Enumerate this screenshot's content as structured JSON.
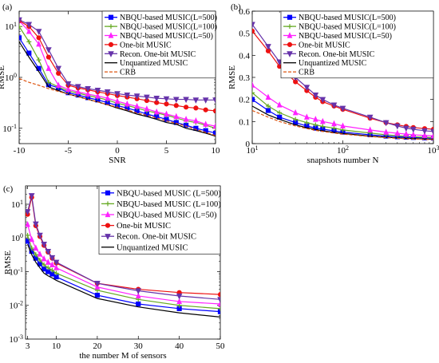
{
  "chart_data": [
    {
      "panel": "(a)",
      "type": "line",
      "xlabel": "SNR",
      "ylabel": "RMSE",
      "yscale": "log",
      "xlim": [
        -10,
        10
      ],
      "ylim": [
        0.05,
        20
      ],
      "xticks": [
        "-10",
        "-5",
        "0",
        "5",
        "10"
      ],
      "xtick_values": [
        -10,
        -5,
        0,
        5,
        10
      ],
      "yticks": [
        "10^{-1}",
        "10^0",
        "10^1"
      ],
      "ytick_values": [
        0.1,
        1,
        10
      ],
      "legend_position": "top-right",
      "series": [
        {
          "name": "NBQU-based MUSIC(L=500)",
          "color": "#0000ff",
          "marker": "square",
          "dash": "",
          "x": [
            -10,
            -9,
            -8,
            -7,
            -6,
            -5,
            -4,
            -3,
            -2,
            -1,
            0,
            1,
            2,
            3,
            4,
            5,
            6,
            7,
            8,
            9,
            10
          ],
          "y": [
            6,
            3,
            1.5,
            0.72,
            0.62,
            0.5,
            0.45,
            0.4,
            0.36,
            0.32,
            0.28,
            0.25,
            0.22,
            0.19,
            0.17,
            0.15,
            0.13,
            0.115,
            0.1,
            0.09,
            0.08
          ]
        },
        {
          "name": "NBQU-based MUSIC(L=100)",
          "color": "#66aa22",
          "marker": "plus",
          "dash": "",
          "x": [
            -10,
            -9,
            -8,
            -7,
            -6,
            -5,
            -4,
            -3,
            -2,
            -1,
            0,
            1,
            2,
            3,
            4,
            5,
            6,
            7,
            8,
            9,
            10
          ],
          "y": [
            10,
            5,
            2.2,
            0.8,
            0.65,
            0.54,
            0.49,
            0.44,
            0.4,
            0.36,
            0.31,
            0.28,
            0.25,
            0.22,
            0.2,
            0.18,
            0.16,
            0.14,
            0.13,
            0.115,
            0.1
          ]
        },
        {
          "name": "NBQU-based MUSIC(L=50)",
          "color": "#ff22ff",
          "marker": "triangle",
          "dash": "",
          "x": [
            -10,
            -9,
            -8,
            -7,
            -6,
            -5,
            -4,
            -3,
            -2,
            -1,
            0,
            1,
            2,
            3,
            4,
            5,
            6,
            7,
            8,
            9,
            10
          ],
          "y": [
            13,
            8,
            4.5,
            1.5,
            0.7,
            0.58,
            0.52,
            0.47,
            0.43,
            0.39,
            0.34,
            0.3,
            0.27,
            0.24,
            0.21,
            0.19,
            0.17,
            0.15,
            0.14,
            0.12,
            0.11
          ]
        },
        {
          "name": "One-bit MUSIC",
          "color": "#ee1111",
          "marker": "circle",
          "dash": "",
          "x": [
            -10,
            -9,
            -8,
            -7,
            -6,
            -5,
            -4,
            -3,
            -2,
            -1,
            0,
            1,
            2,
            3,
            4,
            5,
            6,
            7,
            8,
            9,
            10
          ],
          "y": [
            13,
            10,
            6,
            2.5,
            1.2,
            0.7,
            0.62,
            0.57,
            0.52,
            0.48,
            0.44,
            0.41,
            0.38,
            0.35,
            0.32,
            0.3,
            0.28,
            0.26,
            0.25,
            0.23,
            0.22
          ]
        },
        {
          "name": "Recon. One-bit MUSIC",
          "color": "#6633aa",
          "marker": "downtriangle",
          "dash": "",
          "x": [
            -10,
            -9,
            -8,
            -7,
            -6,
            -5,
            -4,
            -3,
            -2,
            -1,
            0,
            1,
            2,
            3,
            4,
            5,
            6,
            7,
            8,
            9,
            10
          ],
          "y": [
            13.5,
            11,
            8,
            3.5,
            1.5,
            0.75,
            0.66,
            0.6,
            0.56,
            0.52,
            0.48,
            0.45,
            0.43,
            0.41,
            0.39,
            0.38,
            0.37,
            0.37,
            0.36,
            0.36,
            0.36
          ]
        },
        {
          "name": "Unquantized MUSIC",
          "color": "#000000",
          "marker": "none",
          "dash": "",
          "x": [
            -10,
            -9,
            -8,
            -7,
            -6,
            -5,
            -4,
            -3,
            -2,
            -1,
            0,
            1,
            2,
            3,
            4,
            5,
            6,
            7,
            8,
            9,
            10
          ],
          "y": [
            5,
            2.5,
            1.3,
            0.65,
            0.55,
            0.47,
            0.42,
            0.37,
            0.33,
            0.29,
            0.25,
            0.22,
            0.19,
            0.17,
            0.15,
            0.13,
            0.12,
            0.1,
            0.09,
            0.08,
            0.07
          ]
        },
        {
          "name": "CRB",
          "color": "#dd5511",
          "marker": "none",
          "dash": "4,2",
          "x": [
            -10,
            -9,
            -8,
            -7,
            -6,
            -5,
            -4,
            -3,
            -2,
            -1,
            0,
            1,
            2,
            3,
            4,
            5,
            6,
            7,
            8,
            9,
            10
          ],
          "y": [
            0.95,
            0.8,
            0.7,
            0.6,
            0.53,
            0.47,
            0.42,
            0.37,
            0.33,
            0.29,
            0.26,
            0.23,
            0.2,
            0.18,
            0.16,
            0.14,
            0.125,
            0.11,
            0.095,
            0.083,
            0.072
          ]
        }
      ]
    },
    {
      "panel": "(b)",
      "type": "line",
      "xlabel": "snapshots number N",
      "ylabel": "RMSE",
      "xscale": "log",
      "xlim": [
        10,
        1000
      ],
      "ylim": [
        0,
        0.6
      ],
      "xticks": [
        "10^1",
        "10^2",
        "10^3"
      ],
      "xtick_values": [
        10,
        100,
        1000
      ],
      "yticks": [
        "0",
        "0.1",
        "0.2",
        "0.3",
        "0.4",
        "0.5",
        "0.6"
      ],
      "ytick_values": [
        0,
        0.1,
        0.2,
        0.3,
        0.4,
        0.5,
        0.6
      ],
      "legend_position": "top-right",
      "series": [
        {
          "name": "NBQU-based MUSIC(L=500)",
          "color": "#0000ff",
          "marker": "square",
          "dash": "",
          "x": [
            10,
            15,
            20,
            30,
            40,
            50,
            60,
            80,
            100,
            200,
            300,
            400,
            500,
            600,
            800,
            1000
          ],
          "y": [
            0.2,
            0.15,
            0.12,
            0.095,
            0.08,
            0.07,
            0.065,
            0.058,
            0.052,
            0.04,
            0.034,
            0.031,
            0.029,
            0.028,
            0.026,
            0.025
          ]
        },
        {
          "name": "NBQU-based MUSIC(L=100)",
          "color": "#66aa22",
          "marker": "plus",
          "dash": "",
          "x": [
            10,
            15,
            20,
            30,
            40,
            50,
            60,
            80,
            100,
            200,
            300,
            400,
            500,
            600,
            800,
            1000
          ],
          "y": [
            0.23,
            0.17,
            0.14,
            0.11,
            0.095,
            0.085,
            0.078,
            0.07,
            0.062,
            0.048,
            0.04,
            0.036,
            0.033,
            0.031,
            0.029,
            0.027
          ]
        },
        {
          "name": "NBQU-based MUSIC(L=50)",
          "color": "#ff22ff",
          "marker": "triangle",
          "dash": "",
          "x": [
            10,
            15,
            20,
            30,
            40,
            50,
            60,
            80,
            100,
            200,
            300,
            400,
            500,
            600,
            800,
            1000
          ],
          "y": [
            0.265,
            0.21,
            0.175,
            0.14,
            0.12,
            0.11,
            0.1,
            0.09,
            0.08,
            0.062,
            0.052,
            0.047,
            0.043,
            0.04,
            0.037,
            0.035
          ]
        },
        {
          "name": "One-bit MUSIC",
          "color": "#ee1111",
          "marker": "circle",
          "dash": "",
          "x": [
            10,
            15,
            20,
            30,
            40,
            50,
            60,
            80,
            100,
            200,
            300,
            400,
            500,
            600,
            800,
            1000
          ],
          "y": [
            0.51,
            0.42,
            0.35,
            0.28,
            0.24,
            0.21,
            0.19,
            0.17,
            0.155,
            0.115,
            0.095,
            0.085,
            0.078,
            0.073,
            0.068,
            0.065
          ]
        },
        {
          "name": "Recon. One-bit MUSIC",
          "color": "#6633aa",
          "marker": "downtriangle",
          "dash": "",
          "x": [
            10,
            15,
            20,
            30,
            40,
            50,
            60,
            80,
            100,
            200,
            300,
            400,
            500,
            600,
            800,
            1000
          ],
          "y": [
            0.54,
            0.44,
            0.37,
            0.3,
            0.255,
            0.22,
            0.2,
            0.175,
            0.16,
            0.12,
            0.095,
            0.08,
            0.07,
            0.065,
            0.058,
            0.055
          ]
        },
        {
          "name": "Unquantized MUSIC",
          "color": "#000000",
          "marker": "none",
          "dash": "",
          "x": [
            10,
            15,
            20,
            30,
            40,
            50,
            60,
            80,
            100,
            200,
            300,
            400,
            500,
            600,
            800,
            1000
          ],
          "y": [
            0.17,
            0.13,
            0.11,
            0.085,
            0.072,
            0.064,
            0.058,
            0.051,
            0.046,
            0.034,
            0.029,
            0.026,
            0.024,
            0.023,
            0.021,
            0.02
          ]
        },
        {
          "name": "CRB",
          "color": "#dd5511",
          "marker": "none",
          "dash": "4,2",
          "x": [
            10,
            15,
            20,
            30,
            40,
            50,
            60,
            80,
            100,
            200,
            300,
            400,
            500,
            600,
            800,
            1000
          ],
          "y": [
            0.15,
            0.12,
            0.1,
            0.08,
            0.068,
            0.06,
            0.055,
            0.048,
            0.043,
            0.032,
            0.027,
            0.024,
            0.022,
            0.021,
            0.019,
            0.018
          ]
        }
      ]
    },
    {
      "panel": "(c)",
      "type": "line",
      "xlabel": "the number M of sensors",
      "ylabel": "RMSE",
      "yscale": "log",
      "xlim": [
        2.5,
        50
      ],
      "ylim": [
        0.001,
        35
      ],
      "xticks": [
        "3",
        "10",
        "20",
        "30",
        "40",
        "50"
      ],
      "xtick_values": [
        3,
        10,
        20,
        30,
        40,
        50
      ],
      "yticks": [
        "10^{-3}",
        "10^{-2}",
        "10^{-1}",
        "10^0",
        "10^1"
      ],
      "ytick_values": [
        0.001,
        0.01,
        0.1,
        1,
        10
      ],
      "legend_position": "top-right",
      "series": [
        {
          "name": "NBQU-based MUSIC (L=500)",
          "color": "#0000ff",
          "marker": "square",
          "dash": "",
          "x": [
            3,
            4,
            5,
            6,
            7,
            8,
            9,
            10,
            20,
            30,
            40,
            50
          ],
          "y": [
            0.8,
            0.4,
            0.25,
            0.17,
            0.12,
            0.1,
            0.085,
            0.07,
            0.02,
            0.011,
            0.008,
            0.0065
          ]
        },
        {
          "name": "NBQU-based MUSIC (L=100)",
          "color": "#66aa22",
          "marker": "plus",
          "dash": "",
          "x": [
            3,
            4,
            5,
            6,
            7,
            8,
            9,
            10,
            20,
            30,
            40,
            50
          ],
          "y": [
            1.2,
            0.5,
            0.32,
            0.22,
            0.16,
            0.13,
            0.11,
            0.09,
            0.028,
            0.015,
            0.01,
            0.008
          ]
        },
        {
          "name": "NBQU-based MUSIC (L=50)",
          "color": "#ff22ff",
          "marker": "triangle",
          "dash": "",
          "x": [
            3,
            4,
            5,
            6,
            7,
            8,
            9,
            10,
            20,
            30,
            40,
            50
          ],
          "y": [
            2.5,
            0.9,
            0.5,
            0.33,
            0.24,
            0.19,
            0.16,
            0.13,
            0.035,
            0.019,
            0.013,
            0.011
          ]
        },
        {
          "name": "One-bit MUSIC",
          "color": "#ee1111",
          "marker": "circle",
          "dash": "",
          "x": [
            3,
            4,
            5,
            6,
            7,
            8,
            9,
            10,
            20,
            30,
            40,
            50
          ],
          "y": [
            5,
            16,
            2.3,
            1.1,
            0.6,
            0.38,
            0.25,
            0.18,
            0.045,
            0.03,
            0.024,
            0.021
          ]
        },
        {
          "name": "Recon. One-bit MUSIC",
          "color": "#6633aa",
          "marker": "downtriangle",
          "dash": "",
          "x": [
            3,
            4,
            5,
            6,
            7,
            8,
            9,
            10,
            20,
            30,
            40,
            50
          ],
          "y": [
            6,
            18,
            2.6,
            1.2,
            0.65,
            0.4,
            0.26,
            0.19,
            0.045,
            0.027,
            0.019,
            0.015
          ]
        },
        {
          "name": "Unquantized MUSIC",
          "color": "#000000",
          "marker": "none",
          "dash": "",
          "x": [
            3,
            4,
            5,
            6,
            7,
            8,
            9,
            10,
            20,
            30,
            40,
            50
          ],
          "y": [
            0.65,
            0.32,
            0.19,
            0.13,
            0.09,
            0.075,
            0.065,
            0.055,
            0.016,
            0.009,
            0.006,
            0.0045
          ]
        }
      ]
    }
  ]
}
